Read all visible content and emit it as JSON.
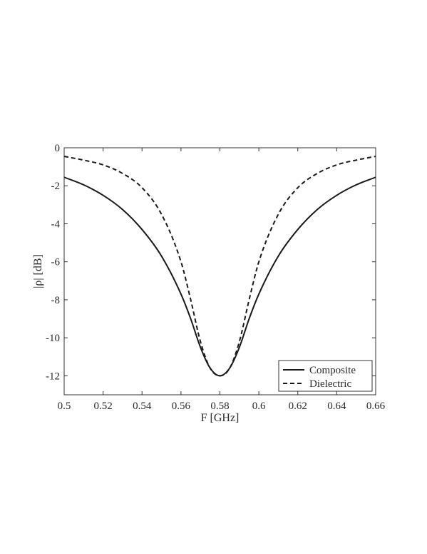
{
  "chart_data": {
    "type": "line",
    "xlabel": "F [GHz]",
    "ylabel": "|ρ| [dB]",
    "xlim": [
      0.5,
      0.66
    ],
    "ylim": [
      -13,
      0
    ],
    "xticks": [
      0.5,
      0.52,
      0.54,
      0.56,
      0.58,
      0.6,
      0.62,
      0.64,
      0.66
    ],
    "xtick_labels": [
      "0.5",
      "0.52",
      "0.54",
      "0.56",
      "0.58",
      "0.6",
      "0.62",
      "0.64",
      "0.66"
    ],
    "yticks": [
      0,
      -2,
      -4,
      -6,
      -8,
      -10,
      -12
    ],
    "ytick_labels": [
      "0",
      "-2",
      "-4",
      "-6",
      "-8",
      "-10",
      "-12"
    ],
    "grid": false,
    "legend_position": "bottom-right",
    "series": [
      {
        "name": "Composite",
        "style": "solid",
        "x": [
          0.5,
          0.51,
          0.52,
          0.53,
          0.54,
          0.55,
          0.56,
          0.565,
          0.57,
          0.575,
          0.58,
          0.585,
          0.59,
          0.595,
          0.6,
          0.61,
          0.62,
          0.63,
          0.64,
          0.65,
          0.66
        ],
        "y": [
          -1.55,
          -1.95,
          -2.5,
          -3.25,
          -4.3,
          -5.7,
          -7.7,
          -9.0,
          -10.5,
          -11.6,
          -12.0,
          -11.6,
          -10.5,
          -9.0,
          -7.7,
          -5.7,
          -4.3,
          -3.25,
          -2.5,
          -1.95,
          -1.55
        ]
      },
      {
        "name": "Dielectric",
        "style": "dashed",
        "x": [
          0.5,
          0.51,
          0.52,
          0.53,
          0.54,
          0.55,
          0.56,
          0.565,
          0.57,
          0.575,
          0.58,
          0.585,
          0.59,
          0.595,
          0.6,
          0.61,
          0.62,
          0.63,
          0.64,
          0.65,
          0.66
        ],
        "y": [
          -0.45,
          -0.65,
          -0.9,
          -1.35,
          -2.1,
          -3.5,
          -6.0,
          -8.0,
          -10.2,
          -11.6,
          -12.0,
          -11.6,
          -10.2,
          -8.0,
          -6.0,
          -3.5,
          -2.1,
          -1.35,
          -0.9,
          -0.65,
          -0.45
        ]
      }
    ],
    "colors": {
      "line": "#1a1a1a",
      "axes": "#333333",
      "text": "#2b2b2b"
    }
  }
}
